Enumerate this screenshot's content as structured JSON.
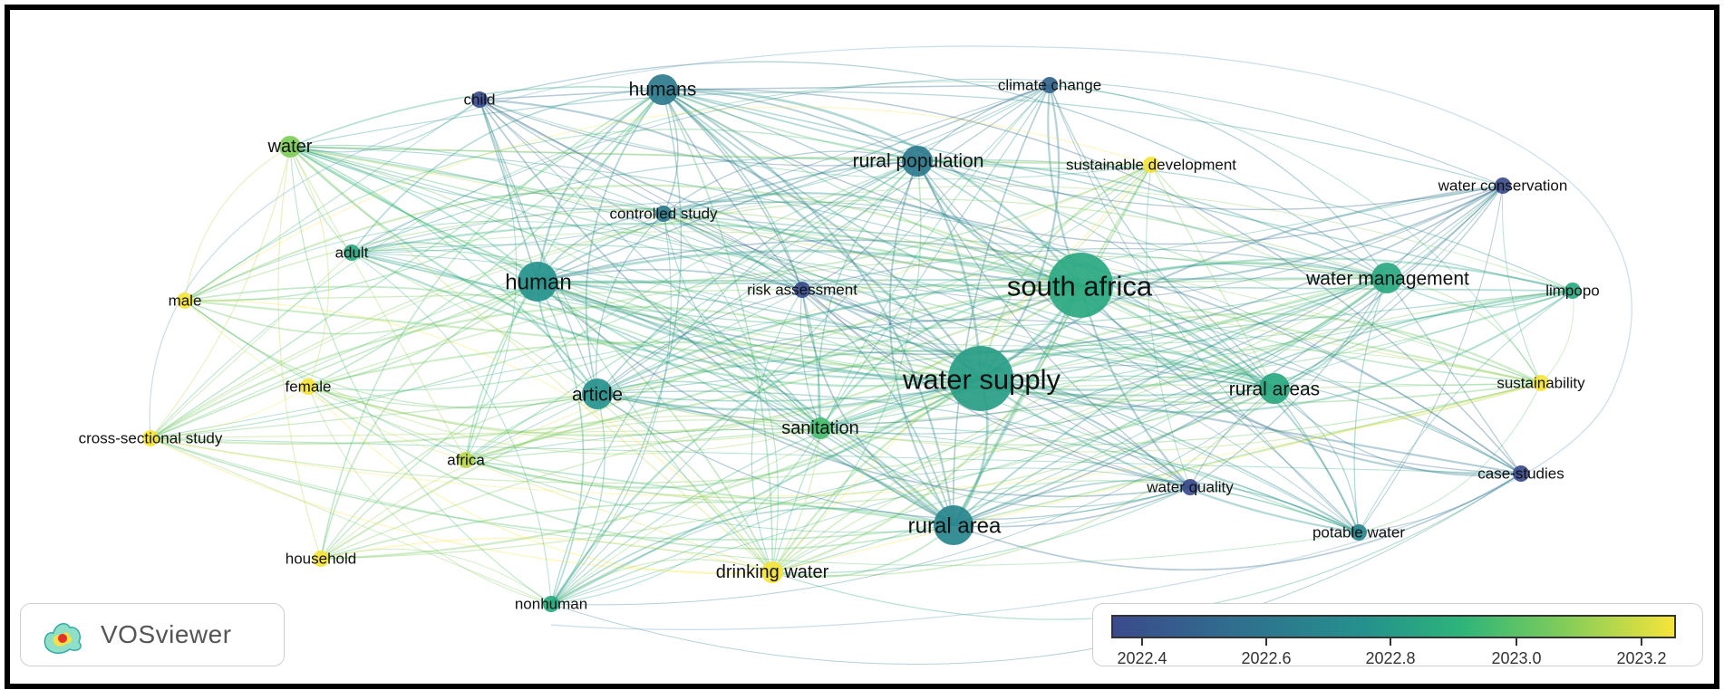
{
  "branding": {
    "app_name": "VOSviewer"
  },
  "legend": {
    "ticks": [
      "2022.4",
      "2022.6",
      "2022.8",
      "2023.0",
      "2023.2"
    ],
    "colors": {
      "low": "#3b4a8c",
      "mid": "#25918c",
      "high": "#f6e43a"
    }
  },
  "nodes": [
    {
      "id": "south-africa",
      "label": "south africa",
      "weight": 10,
      "year": 2022.8
    },
    {
      "id": "water-supply",
      "label": "water supply",
      "weight": 10,
      "year": 2022.75
    },
    {
      "id": "rural-area",
      "label": "rural area",
      "weight": 7,
      "year": 2022.65
    },
    {
      "id": "human",
      "label": "human",
      "weight": 7,
      "year": 2022.7
    },
    {
      "id": "humans",
      "label": "humans",
      "weight": 6,
      "year": 2022.6
    },
    {
      "id": "rural-population",
      "label": "rural population",
      "weight": 5,
      "year": 2022.6
    },
    {
      "id": "water-management",
      "label": "water management",
      "weight": 5,
      "year": 2022.8
    },
    {
      "id": "rural-areas",
      "label": "rural areas",
      "weight": 5,
      "year": 2022.8
    },
    {
      "id": "article",
      "label": "article",
      "weight": 5,
      "year": 2022.7
    },
    {
      "id": "sanitation",
      "label": "sanitation",
      "weight": 4,
      "year": 2022.9
    },
    {
      "id": "drinking-water",
      "label": "drinking water",
      "weight": 4,
      "year": 2023.2
    },
    {
      "id": "climate-change",
      "label": "climate change",
      "weight": 3,
      "year": 2022.5
    },
    {
      "id": "sustainable-development",
      "label": "sustainable development",
      "weight": 3,
      "year": 2023.2
    },
    {
      "id": "water-conservation",
      "label": "water conservation",
      "weight": 3,
      "year": 2022.4
    },
    {
      "id": "controlled-study",
      "label": "controlled study",
      "weight": 3,
      "year": 2022.6
    },
    {
      "id": "risk-assessment",
      "label": "risk assessment",
      "weight": 3,
      "year": 2022.4
    },
    {
      "id": "limpopo",
      "label": "limpopo",
      "weight": 3,
      "year": 2022.8
    },
    {
      "id": "sustainability",
      "label": "sustainability",
      "weight": 3,
      "year": 2023.2
    },
    {
      "id": "water-quality",
      "label": "water quality",
      "weight": 3,
      "year": 2022.4
    },
    {
      "id": "case-studies",
      "label": "case-studies",
      "weight": 3,
      "year": 2022.4
    },
    {
      "id": "potable-water",
      "label": "potable water",
      "weight": 3,
      "year": 2022.65
    },
    {
      "id": "child",
      "label": "child",
      "weight": 3,
      "year": 2022.4
    },
    {
      "id": "water",
      "label": "water",
      "weight": 4,
      "year": 2023.0
    },
    {
      "id": "adult",
      "label": "adult",
      "weight": 3,
      "year": 2022.8
    },
    {
      "id": "male",
      "label": "male",
      "weight": 3,
      "year": 2023.2
    },
    {
      "id": "female",
      "label": "female",
      "weight": 3,
      "year": 2023.2
    },
    {
      "id": "cross-sectional-study",
      "label": "cross-sectional study",
      "weight": 3,
      "year": 2023.2
    },
    {
      "id": "africa",
      "label": "africa",
      "weight": 3,
      "year": 2023.1
    },
    {
      "id": "household",
      "label": "household",
      "weight": 3,
      "year": 2023.2
    },
    {
      "id": "nonhuman",
      "label": "nonhuman",
      "weight": 3,
      "year": 2022.8
    }
  ]
}
